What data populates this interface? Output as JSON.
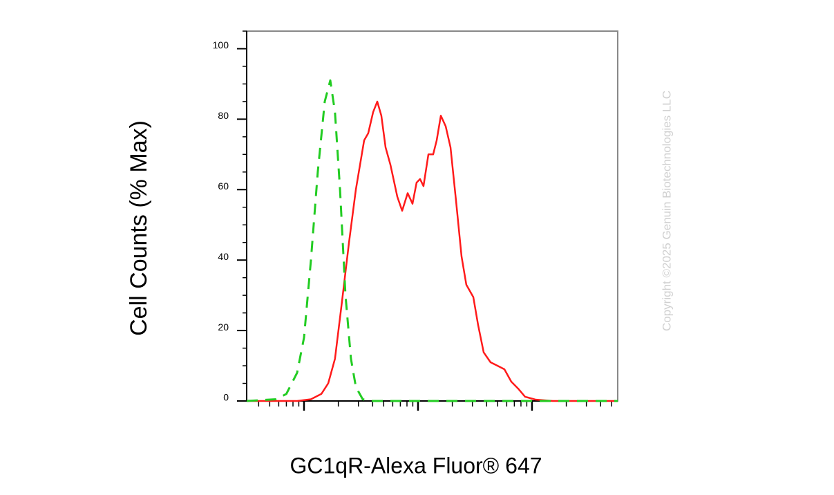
{
  "chart_data": {
    "type": "line",
    "y_label": "Cell Counts (% Max)",
    "x_label": "GC1qR-Alexa Fluor® 647",
    "watermark": "Copyright ©2025 Genuin Biotechnologies LLC",
    "x_scale": "log",
    "xlim": [
      31.4,
      56500
    ],
    "xticks": [
      100,
      1000,
      10000
    ],
    "ylim": [
      0,
      105
    ],
    "yticks": [
      0,
      20,
      40,
      60,
      80,
      100
    ],
    "series": [
      {
        "color": "#ff1a1a",
        "dashed": false,
        "x": [
          31.4,
          87,
          115,
          142,
          163,
          187,
          215,
          248,
          285,
          337,
          366,
          404,
          439,
          477,
          519,
          573,
          658,
          726,
          811,
          895,
          972,
          1042,
          1117,
          1233,
          1359,
          1459,
          1585,
          1748,
          1928,
          2154,
          2410,
          2655,
          3055,
          3365,
          3767,
          4327,
          4977,
          5728,
          6577,
          7568,
          8690,
          10720,
          15200,
          56500
        ],
        "values": [
          0,
          0,
          0.5,
          2,
          5,
          12,
          28,
          45,
          60,
          74,
          76,
          82,
          85,
          81,
          72,
          67,
          58,
          54,
          59,
          56,
          62,
          63,
          61,
          70,
          70,
          74,
          81,
          78,
          72,
          57,
          41,
          33,
          29.5,
          21.6,
          13.8,
          11,
          10,
          9,
          5.5,
          3.5,
          1.2,
          0.4,
          0,
          0
        ]
      },
      {
        "color": "#22cc22",
        "dashed": true,
        "x": [
          31.4,
          57,
          70,
          87,
          100,
          115,
          132,
          152,
          170,
          187,
          207,
          231,
          258,
          285,
          327,
          377,
          56500
        ],
        "values": [
          0,
          0.5,
          2,
          8,
          18,
          40,
          65,
          85,
          91,
          82,
          60,
          30,
          12,
          4,
          0.5,
          0,
          0
        ]
      }
    ]
  }
}
